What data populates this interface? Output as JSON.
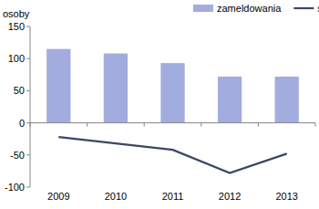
{
  "chart_data": {
    "type": "bar",
    "y_label": "osoby",
    "categories": [
      "2009",
      "2010",
      "2011",
      "2012",
      "2013"
    ],
    "series": [
      {
        "name": "zameldowania",
        "type": "bar",
        "color": "#a3acdf",
        "values": [
          115,
          108,
          93,
          72,
          72
        ]
      },
      {
        "name": "saldo migracji",
        "type": "line",
        "color": "#3b4764",
        "values": [
          -22,
          -32,
          -42,
          -78,
          -48
        ]
      }
    ],
    "ylim": [
      -100,
      150
    ],
    "yticks": [
      -100,
      -50,
      0,
      50,
      100,
      150
    ],
    "grid": false,
    "legend": "top"
  }
}
